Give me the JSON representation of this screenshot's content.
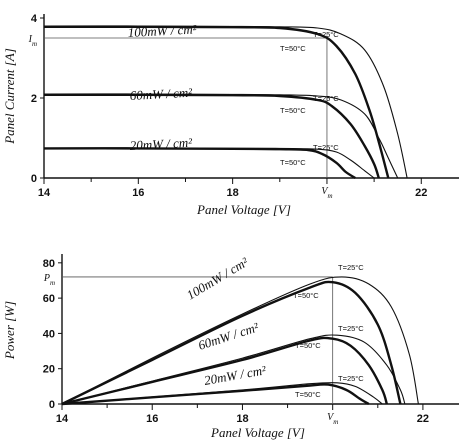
{
  "chart_data": [
    {
      "type": "line",
      "title": "",
      "xlabel": "Panel  Voltage [V]",
      "ylabel": "Panel  Current [A]",
      "xlim": [
        14,
        22.8
      ],
      "ylim": [
        0,
        4.1
      ],
      "xticks": [
        "14",
        "16",
        "18",
        "22"
      ],
      "yticks": [
        "0",
        "2",
        "4"
      ],
      "markers": {
        "x": "V_m",
        "x_value": 20.0,
        "y": "I_m",
        "y_value": 3.5
      },
      "series": [
        {
          "name": "100mW / cm²",
          "temperature": "T=25°C",
          "x": [
            14,
            16,
            18,
            19,
            19.8,
            20.3,
            20.8,
            21.2,
            21.5,
            21.7
          ],
          "y": [
            3.8,
            3.8,
            3.79,
            3.78,
            3.75,
            3.6,
            3.2,
            2.3,
            1.1,
            0
          ]
        },
        {
          "name": "100mW / cm²",
          "temperature": "T=50°C",
          "x": [
            14,
            16,
            18,
            19,
            19.8,
            20.2,
            20.6,
            20.9,
            21.1,
            21.3
          ],
          "y": [
            3.78,
            3.78,
            3.77,
            3.75,
            3.6,
            3.3,
            2.6,
            1.7,
            0.9,
            0
          ]
        },
        {
          "name": "60mW / cm²",
          "temperature": "T=25°C",
          "x": [
            14,
            16,
            18,
            19,
            19.8,
            20.3,
            20.8,
            21.1,
            21.3,
            21.5
          ],
          "y": [
            2.1,
            2.1,
            2.09,
            2.08,
            2.05,
            1.95,
            1.6,
            1.0,
            0.5,
            0
          ]
        },
        {
          "name": "60mW / cm²",
          "temperature": "T=50°C",
          "x": [
            14,
            16,
            18,
            19,
            19.8,
            20.1,
            20.5,
            20.8,
            21.0,
            21.1
          ],
          "y": [
            2.08,
            2.08,
            2.07,
            2.05,
            1.95,
            1.8,
            1.35,
            0.8,
            0.35,
            0
          ]
        },
        {
          "name": "20mW / cm²",
          "temperature": "T=25°C",
          "x": [
            14,
            16,
            18,
            19,
            19.8,
            20.2,
            20.5,
            20.8,
            21.0
          ],
          "y": [
            0.75,
            0.75,
            0.74,
            0.74,
            0.72,
            0.65,
            0.45,
            0.18,
            0
          ]
        },
        {
          "name": "20mW / cm²",
          "temperature": "T=50°C",
          "x": [
            14,
            16,
            18,
            19,
            19.6,
            19.9,
            20.2,
            20.4,
            20.6
          ],
          "y": [
            0.74,
            0.74,
            0.73,
            0.72,
            0.7,
            0.6,
            0.38,
            0.15,
            0
          ]
        }
      ]
    },
    {
      "type": "line",
      "title": "",
      "xlabel": "Panel  Voltage [V]",
      "ylabel": "Power [W]",
      "xlim": [
        14,
        22.8
      ],
      "ylim": [
        0,
        85
      ],
      "xticks": [
        "14",
        "16",
        "18",
        "22"
      ],
      "yticks": [
        "0",
        "20",
        "40",
        "60",
        "80"
      ],
      "markers": {
        "x": "V_m",
        "x_value": 20.0,
        "y": "P_m",
        "y_value": 72
      },
      "series": [
        {
          "name": "100mW / cm²",
          "temperature": "T=25°C",
          "x": [
            14,
            16,
            18,
            19.5,
            20.2,
            20.8,
            21.3,
            21.7,
            21.9
          ],
          "y": [
            0,
            26,
            51,
            68,
            72,
            68,
            55,
            28,
            0
          ]
        },
        {
          "name": "100mW / cm²",
          "temperature": "T=50°C",
          "x": [
            14,
            16,
            18,
            19.5,
            20.0,
            20.5,
            21.0,
            21.3,
            21.5
          ],
          "y": [
            0,
            25,
            50,
            66,
            69,
            63,
            45,
            22,
            0
          ]
        },
        {
          "name": "60mW / cm²",
          "temperature": "T=25°C",
          "x": [
            14,
            16,
            18,
            19.5,
            20.1,
            20.7,
            21.2,
            21.5,
            21.6
          ],
          "y": [
            0,
            13,
            26,
            37,
            39,
            35,
            22,
            8,
            0
          ]
        },
        {
          "name": "60mW / cm²",
          "temperature": "T=50°C",
          "x": [
            14,
            16,
            18,
            19.5,
            20.0,
            20.4,
            20.8,
            21.1,
            21.2
          ],
          "y": [
            0,
            12.5,
            25,
            36,
            37,
            33,
            22,
            8,
            0
          ]
        },
        {
          "name": "20mW / cm²",
          "temperature": "T=25°C",
          "x": [
            14,
            16,
            18,
            19.5,
            20.1,
            20.5,
            20.9,
            21.1
          ],
          "y": [
            0,
            4,
            8,
            11.5,
            12,
            10,
            4,
            0
          ]
        },
        {
          "name": "20mW / cm²",
          "temperature": "T=50°C",
          "x": [
            14,
            16,
            18,
            19.5,
            19.9,
            20.3,
            20.6,
            20.8
          ],
          "y": [
            0,
            3.8,
            7.5,
            10.5,
            11,
            8,
            3,
            0
          ]
        }
      ]
    }
  ]
}
